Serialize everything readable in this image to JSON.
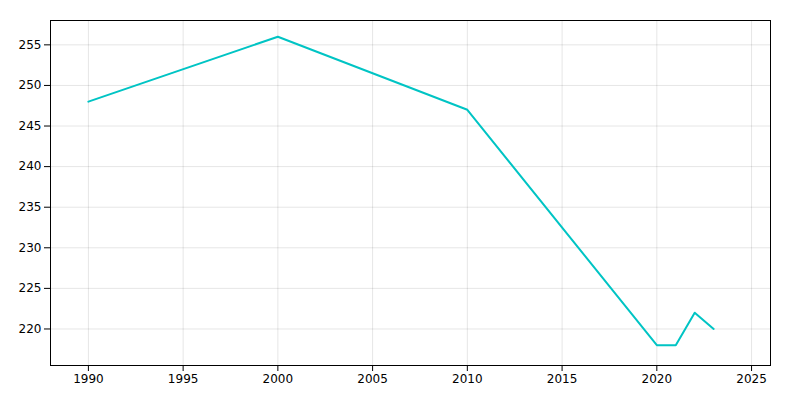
{
  "chart_data": {
    "type": "line",
    "x": [
      1990,
      2000,
      2010,
      2020,
      2021,
      2022,
      2023
    ],
    "values": [
      248,
      256,
      247,
      218,
      218,
      222,
      220
    ],
    "color": "#00C4C4",
    "xlim": [
      1988,
      2026
    ],
    "ylim": [
      215.5,
      258
    ],
    "xticks": [
      1990,
      1995,
      2000,
      2005,
      2010,
      2015,
      2020,
      2025
    ],
    "yticks": [
      220,
      225,
      230,
      235,
      240,
      245,
      250,
      255
    ],
    "grid": true
  }
}
